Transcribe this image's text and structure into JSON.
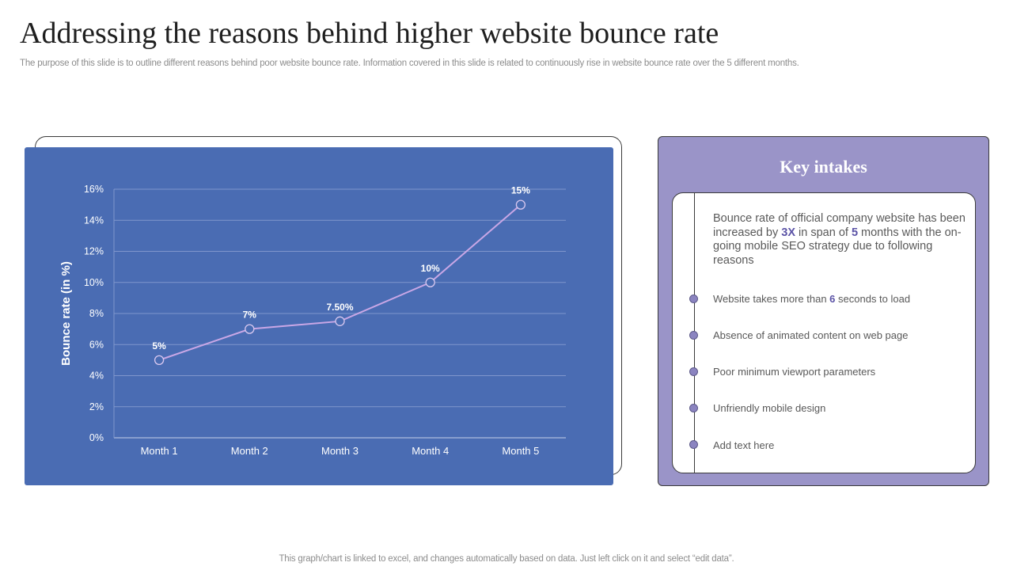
{
  "title": "Addressing the reasons behind higher website bounce rate",
  "subtitle": "The purpose of this slide is to outline different reasons behind poor website bounce rate. Information covered in this slide is related to continuously rise in website bounce rate over the 5 different months.",
  "footer": "This graph/chart is linked to excel,  and changes automatically based on data. Just left click on it and select “edit data”.",
  "colors": {
    "chart_bg": "#4a6cb3",
    "line": "#c9a7e6",
    "panel": "#9a94c8",
    "highlight": "#5b53a6"
  },
  "chart_data": {
    "type": "line",
    "title": "",
    "xlabel": "",
    "ylabel": "Bounce rate (in %)",
    "categories": [
      "Month 1",
      "Month 2",
      "Month 3",
      "Month 4",
      "Month 5"
    ],
    "series": [
      {
        "name": "Bounce rate",
        "values": [
          5,
          7,
          7.5,
          10,
          15
        ],
        "data_labels": [
          "5%",
          "7%",
          "7.50%",
          "10%",
          "15%"
        ]
      }
    ],
    "ylim": [
      0,
      16
    ],
    "yticks": [
      0,
      2,
      4,
      6,
      8,
      10,
      12,
      14,
      16
    ],
    "ytick_labels": [
      "0%",
      "2%",
      "4%",
      "6%",
      "8%",
      "10%",
      "12%",
      "14%",
      "16%"
    ],
    "grid": true
  },
  "key_intakes": {
    "title": "Key intakes",
    "intro": {
      "part1": "Bounce rate of official company website has been increased by ",
      "highlight1": "3X",
      "part2": " in span of ",
      "highlight2": "5",
      "part3": " months with the on-going mobile SEO strategy due to following reasons"
    },
    "reasons": [
      {
        "pre": "Website takes more than ",
        "highlight": "6",
        "post": " seconds to load"
      },
      {
        "pre": "Absence of animated content on web page",
        "highlight": "",
        "post": ""
      },
      {
        "pre": "Poor minimum viewport  parameters",
        "highlight": "",
        "post": ""
      },
      {
        "pre": "Unfriendly  mobile design",
        "highlight": "",
        "post": ""
      },
      {
        "pre": "Add text here",
        "highlight": "",
        "post": ""
      }
    ]
  }
}
